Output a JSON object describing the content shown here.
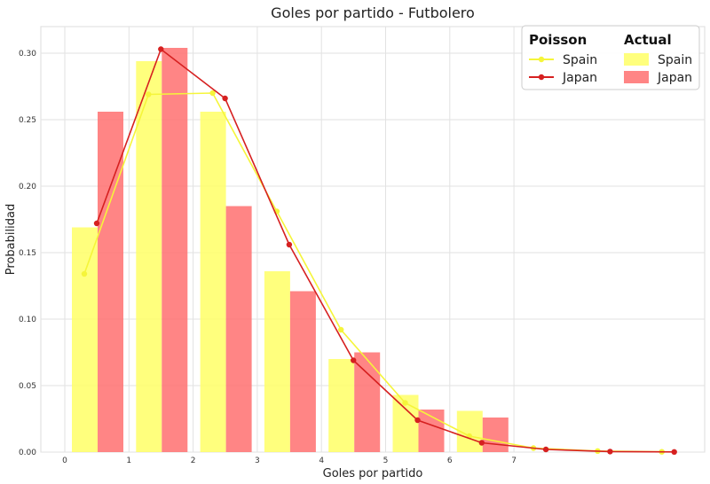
{
  "chart_data": {
    "type": "bar",
    "title": "Goles por partido - Futbolero",
    "xlabel": "Goles por partido",
    "ylabel": "Probabilidad",
    "x_ticks": [
      "0",
      "1",
      "2",
      "3",
      "4",
      "5",
      "6",
      "7"
    ],
    "y_ticks": [
      "0.00",
      "0.05",
      "0.10",
      "0.15",
      "0.20",
      "0.25",
      "0.30"
    ],
    "ylim": [
      0,
      0.32
    ],
    "grid": true,
    "legend": {
      "placement": "top-right",
      "poisson_header": "Poisson",
      "actual_header": "Actual"
    },
    "categories": [
      0,
      1,
      2,
      3,
      4,
      5,
      6
    ],
    "series": [
      {
        "name": "Spain",
        "kind": "bar",
        "group": "Actual",
        "color": "#ffff66",
        "values": [
          0.169,
          0.294,
          0.256,
          0.136,
          0.07,
          0.043,
          0.031
        ]
      },
      {
        "name": "Japan",
        "kind": "bar",
        "group": "Actual",
        "color": "#ff7070",
        "values": [
          0.256,
          0.304,
          0.185,
          0.121,
          0.075,
          0.032,
          0.026
        ]
      },
      {
        "name": "Spain",
        "kind": "line",
        "group": "Poisson",
        "color": "#f5f53a",
        "x": [
          0,
          1,
          2,
          3,
          4,
          5,
          6,
          7,
          8,
          9
        ],
        "values": [
          0.134,
          0.269,
          0.27,
          0.181,
          0.092,
          0.037,
          0.012,
          0.003,
          0.0008,
          0.0002
        ]
      },
      {
        "name": "Japan",
        "kind": "line",
        "group": "Poisson",
        "color": "#d62020",
        "x": [
          0,
          1,
          2,
          3,
          4,
          5,
          6,
          7,
          8,
          9
        ],
        "values": [
          0.172,
          0.303,
          0.266,
          0.156,
          0.069,
          0.024,
          0.007,
          0.002,
          0.0004,
          0.0001
        ]
      }
    ]
  }
}
